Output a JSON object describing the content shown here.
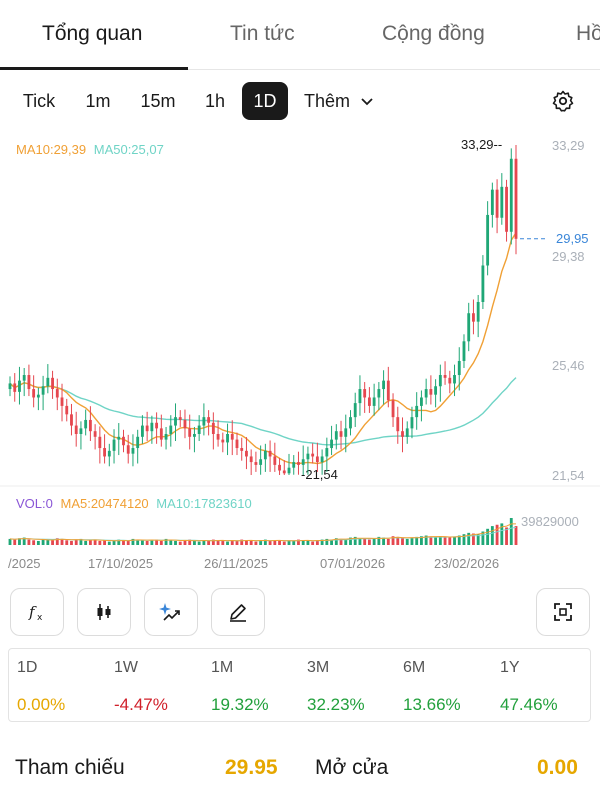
{
  "tabs": [
    {
      "label": "Tổng quan",
      "active": true
    },
    {
      "label": "Tin tức",
      "active": false
    },
    {
      "label": "Cộng đồng",
      "active": false
    },
    {
      "label": "Hồ",
      "active": false
    }
  ],
  "timeframes": [
    {
      "label": "Tick",
      "active": false
    },
    {
      "label": "1m",
      "active": false
    },
    {
      "label": "15m",
      "active": false
    },
    {
      "label": "1h",
      "active": false
    },
    {
      "label": "1D",
      "active": true
    }
  ],
  "more_label": "Thêm",
  "icons": {
    "settings": "gear-icon",
    "more": "chevron-down-icon"
  },
  "colors": {
    "up": "#1fa776",
    "down": "#e5474f",
    "ma10": "#f0a035",
    "ma50": "#6fd4c6",
    "current_price": "#3a86d8",
    "vol_ma10": "#7dd8cd",
    "vol_label": "#8a56d6"
  },
  "chart_data": {
    "type": "candlestick",
    "legend": {
      "ma10": "MA10:29,39",
      "ma50": "MA50:25,07"
    },
    "price_axis_labels": [
      "33,29",
      "29,38",
      "25,46",
      "21,54"
    ],
    "current_price_label": "29,95",
    "high_marker": "33,29",
    "low_marker": "21,54",
    "ylim": [
      21.54,
      33.29
    ],
    "current_price": 29.95,
    "x_labels": [
      "/2025",
      "17/10/2025",
      "26/11/2025",
      "07/01/2026",
      "23/02/2026"
    ],
    "volume": {
      "legend": {
        "vol": "VOL:0",
        "ma5": "MA5:20474120",
        "ma10": "MA10:17823610"
      },
      "max_label": "39829000",
      "max": 39829000
    },
    "closes": [
      24.8,
      24.5,
      24.9,
      25.1,
      24.6,
      24.3,
      24.4,
      24.7,
      25.0,
      24.6,
      24.3,
      24.0,
      23.7,
      23.3,
      23.0,
      23.2,
      23.5,
      23.1,
      22.9,
      22.5,
      22.2,
      22.4,
      22.8,
      22.9,
      22.6,
      22.3,
      22.5,
      22.9,
      23.3,
      23.1,
      23.4,
      23.2,
      22.8,
      23.0,
      23.3,
      23.6,
      23.5,
      23.2,
      22.9,
      23.0,
      23.3,
      23.6,
      23.4,
      23.0,
      22.8,
      22.7,
      23.0,
      22.8,
      22.5,
      22.4,
      22.2,
      22.0,
      21.9,
      22.1,
      22.4,
      22.2,
      21.9,
      21.7,
      21.6,
      21.8,
      22.0,
      21.9,
      22.1,
      22.3,
      22.2,
      22.0,
      22.2,
      22.5,
      22.8,
      23.1,
      22.9,
      23.2,
      23.6,
      24.1,
      24.6,
      24.3,
      24.0,
      24.3,
      24.6,
      24.9,
      24.2,
      23.6,
      23.1,
      22.9,
      23.2,
      23.6,
      24.0,
      24.3,
      24.6,
      24.4,
      24.7,
      25.1,
      25.0,
      24.8,
      25.1,
      25.6,
      26.3,
      27.3,
      27.0,
      27.7,
      29.0,
      30.8,
      31.7,
      30.7,
      31.8,
      30.2,
      32.8,
      29.95
    ],
    "volumes": [
      9,
      8,
      10,
      11,
      8,
      7,
      6,
      9,
      8,
      7,
      10,
      9,
      7,
      6,
      8,
      9,
      6,
      7,
      8,
      6,
      7,
      5,
      6,
      8,
      7,
      6,
      9,
      8,
      7,
      6,
      7,
      8,
      6,
      9,
      7,
      6,
      5,
      7,
      8,
      6,
      5,
      7,
      6,
      8,
      7,
      6,
      5,
      7,
      6,
      8,
      7,
      6,
      5,
      7,
      8,
      6,
      7,
      6,
      5,
      7,
      6,
      8,
      7,
      6,
      5,
      7,
      8,
      9,
      8,
      10,
      9,
      8,
      11,
      12,
      10,
      9,
      8,
      10,
      12,
      11,
      9,
      13,
      12,
      10,
      9,
      11,
      12,
      13,
      14,
      12,
      11,
      13,
      12,
      11,
      12,
      14,
      16,
      18,
      17,
      16,
      20,
      24,
      28,
      30,
      32,
      26,
      40,
      28
    ]
  },
  "toolbar": [
    {
      "icon": "function-icon"
    },
    {
      "icon": "candlestick-icon"
    },
    {
      "icon": "sparkle-trend-icon"
    },
    {
      "icon": "pencil-icon"
    },
    {
      "icon": "screenshot-icon"
    }
  ],
  "performance": [
    {
      "period": "1D",
      "change": "0.00%",
      "color": "#e6a700"
    },
    {
      "period": "1W",
      "change": "-4.47%",
      "color": "#d0202a"
    },
    {
      "period": "1M",
      "change": "19.32%",
      "color": "#22a03c"
    },
    {
      "period": "3M",
      "change": "32.23%",
      "color": "#22a03c"
    },
    {
      "period": "6M",
      "change": "13.66%",
      "color": "#22a03c"
    },
    {
      "period": "1Y",
      "change": "47.46%",
      "color": "#22a03c"
    }
  ],
  "info": [
    {
      "label": "Tham chiếu",
      "value": "29.95"
    },
    {
      "label": "Mở cửa",
      "value": "0.00"
    }
  ]
}
